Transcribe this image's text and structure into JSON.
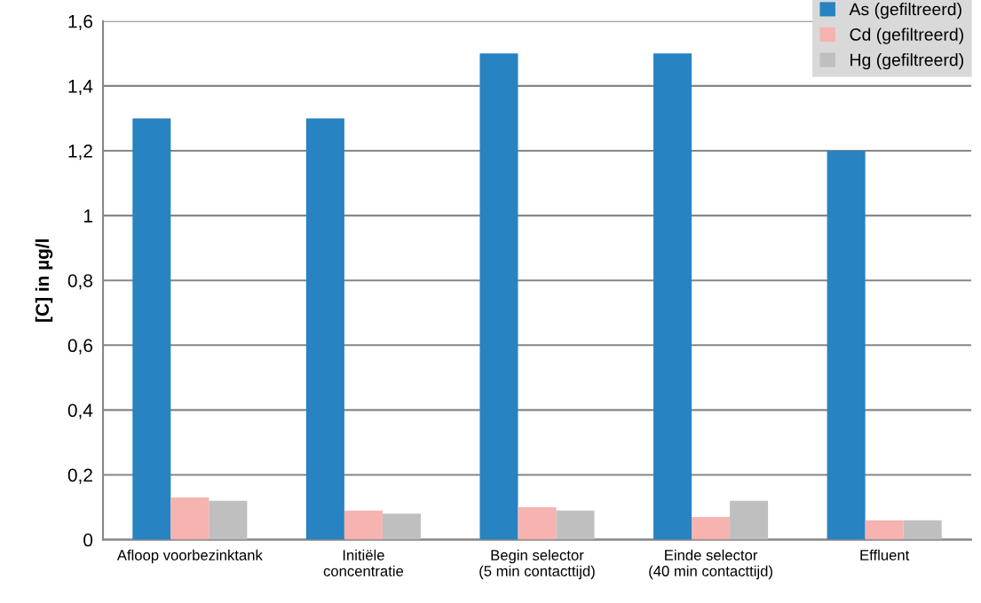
{
  "chart_data": {
    "type": "bar",
    "ylabel": "[C] in µg/l",
    "categories": [
      "Afloop voorbezinktank",
      "Initiële\nconcentratie",
      "Begin selector\n(5 min contacttijd)",
      "Einde selector\n(40 min contacttijd)",
      "Effluent"
    ],
    "series": [
      {
        "name": "As (gefiltreerd)",
        "color": "#2783c2",
        "values": [
          1.3,
          1.3,
          1.5,
          1.5,
          1.2
        ]
      },
      {
        "name": "Cd (gefiltreerd)",
        "color": "#f6b3b0",
        "values": [
          0.13,
          0.09,
          0.1,
          0.07,
          0.06
        ]
      },
      {
        "name": "Hg (gefiltreerd)",
        "color": "#bfbfbf",
        "values": [
          0.12,
          0.08,
          0.09,
          0.12,
          0.06
        ]
      }
    ],
    "ylim": [
      0,
      1.6
    ],
    "yticks": [
      0,
      {
        "value": 0.2,
        "label": "0,2"
      },
      {
        "value": 0.4,
        "label": "0,4"
      },
      {
        "value": 0.6,
        "label": "0,6"
      },
      {
        "value": 0.8,
        "label": "0,8"
      },
      1,
      {
        "value": 1.2,
        "label": "1,2"
      },
      {
        "value": 1.4,
        "label": "1,4"
      },
      {
        "value": 1.6,
        "label": "1,6"
      }
    ],
    "grid": "y",
    "legend": "top right"
  }
}
